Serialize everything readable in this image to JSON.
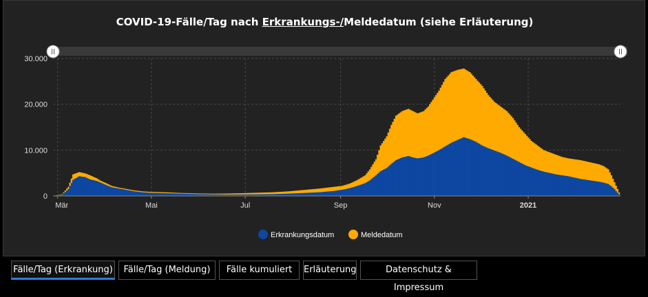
{
  "chart_data": {
    "type": "bar",
    "title_parts": [
      "COVID-19-Fälle/Tag nach ",
      "Erkrankungs-/",
      "Meldedatum (siehe Erläuterung)"
    ],
    "y_ticks": [
      "0",
      "10.000",
      "20.000",
      "30.000"
    ],
    "ylim": [
      0,
      30000
    ],
    "x_ticks": [
      "Mär",
      "Mai",
      "Jul",
      "Sep",
      "Nov",
      "2021"
    ],
    "x_tick_days": [
      0,
      61,
      122,
      184,
      245,
      306
    ],
    "x_range_days": [
      -3,
      366
    ],
    "grid": true,
    "legend_position": "bottom-center",
    "series": [
      {
        "name": "Erkrankungsdatum",
        "color": "#0d47a1",
        "x_days": [
          -3,
          3,
          7,
          10,
          14,
          18,
          21,
          25,
          28,
          32,
          35,
          40,
          45,
          50,
          55,
          60,
          70,
          80,
          90,
          100,
          110,
          120,
          130,
          140,
          150,
          160,
          170,
          175,
          180,
          185,
          190,
          195,
          200,
          203,
          207,
          210,
          214,
          217,
          220,
          224,
          228,
          231,
          234,
          238,
          241,
          244,
          248,
          252,
          256,
          260,
          264,
          268,
          272,
          276,
          280,
          284,
          288,
          292,
          296,
          300,
          304,
          308,
          312,
          316,
          320,
          324,
          328,
          332,
          336,
          340,
          344,
          348,
          352,
          355,
          358,
          360,
          362,
          364,
          366
        ],
        "values": [
          0,
          300,
          1500,
          3500,
          4300,
          4100,
          3600,
          3300,
          2900,
          2300,
          1900,
          1600,
          1300,
          1000,
          800,
          700,
          600,
          500,
          400,
          350,
          300,
          320,
          350,
          400,
          500,
          650,
          800,
          950,
          1100,
          1350,
          1700,
          2200,
          2800,
          3400,
          4500,
          5400,
          6100,
          7000,
          7800,
          8400,
          8700,
          8400,
          8200,
          8400,
          8800,
          9300,
          10000,
          10800,
          11600,
          12200,
          12800,
          12400,
          11800,
          11000,
          10400,
          9900,
          9400,
          8800,
          8100,
          7400,
          6700,
          6200,
          5700,
          5300,
          5000,
          4700,
          4500,
          4300,
          4000,
          3700,
          3500,
          3300,
          3100,
          2900,
          2600,
          2100,
          1500,
          700,
          0
        ]
      },
      {
        "name": "Meldedatum",
        "color": "#ffaa00",
        "x_days": [
          -3,
          3,
          7,
          10,
          14,
          18,
          21,
          25,
          28,
          32,
          35,
          40,
          45,
          50,
          55,
          60,
          70,
          80,
          90,
          100,
          110,
          120,
          130,
          140,
          150,
          160,
          170,
          175,
          180,
          185,
          190,
          195,
          200,
          203,
          207,
          210,
          214,
          217,
          220,
          224,
          228,
          231,
          234,
          238,
          241,
          244,
          248,
          252,
          256,
          260,
          264,
          268,
          272,
          276,
          280,
          284,
          288,
          292,
          296,
          300,
          304,
          308,
          312,
          316,
          320,
          324,
          328,
          332,
          336,
          340,
          344,
          348,
          352,
          355,
          358,
          360,
          362,
          364,
          366
        ],
        "values": [
          0,
          400,
          2000,
          4700,
          5200,
          4900,
          4500,
          3900,
          3300,
          2700,
          2200,
          1800,
          1500,
          1200,
          1000,
          900,
          800,
          650,
          550,
          500,
          520,
          600,
          700,
          800,
          1000,
          1300,
          1600,
          1800,
          2000,
          2200,
          2700,
          3500,
          4500,
          5800,
          8000,
          11000,
          13000,
          15500,
          17500,
          18500,
          19000,
          18500,
          18000,
          18500,
          19500,
          21000,
          23000,
          25500,
          27000,
          27500,
          27800,
          27000,
          25500,
          24000,
          22000,
          20500,
          19500,
          18500,
          17000,
          15000,
          13500,
          12000,
          11000,
          10000,
          9500,
          9000,
          8500,
          8200,
          8000,
          7800,
          7500,
          7200,
          6900,
          6500,
          5800,
          4500,
          3000,
          1500,
          0
        ]
      }
    ]
  },
  "tabs": [
    {
      "label": "Fälle/Tag (Erkrankung)",
      "active": true
    },
    {
      "label": "Fälle/Tag (Meldung)",
      "active": false
    },
    {
      "label": "Fälle kumuliert",
      "active": false
    },
    {
      "label": "Erläuterung",
      "active": false
    },
    {
      "label": "Datenschutz & Impressum",
      "active": false
    }
  ],
  "colors": {
    "panel_bg": "#222222",
    "grid": "#4a4a4a",
    "axis_text": "#dddddd",
    "scrollbar": "#3a3a3a",
    "tab_active_accent": "#2f7fd8"
  }
}
